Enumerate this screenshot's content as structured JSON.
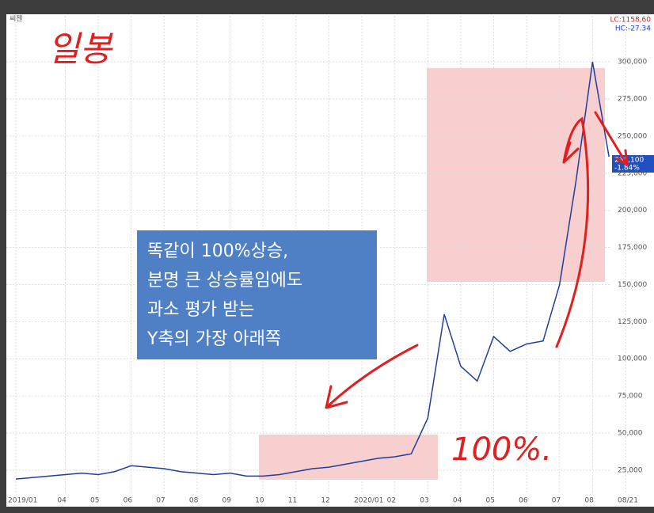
{
  "chart_data": {
    "type": "line",
    "title": "씨젠",
    "legend_info": [
      "LC:1158,60",
      "HC:-27.34"
    ],
    "price_tag": [
      "236,100",
      "-1.84%"
    ],
    "annotations": [
      "일봉",
      "똑같이 100%상승,",
      "분명 큰 상승률임에도",
      "과소 평가 받는",
      "Y축의 가장 아래쪽",
      "100%."
    ],
    "categories": [
      "2019/01",
      null,
      null,
      "04",
      null,
      "05",
      null,
      "06",
      null,
      "07",
      null,
      "08",
      null,
      "09",
      null,
      "10",
      null,
      "11",
      null,
      "12",
      null,
      "2020/01",
      null,
      "02",
      null,
      "03",
      null,
      "04",
      null,
      "05",
      null,
      "06",
      null,
      "07",
      null,
      "08",
      null,
      "08/21"
    ],
    "series": [
      {
        "name": "씨젠",
        "color": "#1f3f9f",
        "values": [
          19000,
          20000,
          21000,
          22000,
          23000,
          22000,
          24000,
          28000,
          27000,
          26000,
          24000,
          23000,
          22000,
          23000,
          21000,
          21000,
          22000,
          24000,
          26000,
          27000,
          29000,
          31000,
          33000,
          34000,
          36000,
          60000,
          130000,
          95000,
          85000,
          115000,
          105000,
          110000,
          112000,
          150000,
          220000,
          300000,
          236100,
          null
        ]
      }
    ],
    "ylim": [
      10000,
      331000
    ],
    "yticks": [
      {
        "value": 25000,
        "label": "25,000"
      },
      {
        "value": 50000,
        "label": "50,000"
      },
      {
        "value": 75000,
        "label": "75,000"
      },
      {
        "value": 100000,
        "label": "100,000"
      },
      {
        "value": 125000,
        "label": "125,000"
      },
      {
        "value": 150000,
        "label": "150,000"
      },
      {
        "value": 175000,
        "label": "175,000"
      },
      {
        "value": 200000,
        "label": "200,000"
      },
      {
        "value": 225000,
        "label": "225,000"
      },
      {
        "value": 250000,
        "label": "250,000"
      },
      {
        "value": 275000,
        "label": "275,000"
      },
      {
        "value": 300000,
        "label": "300,000"
      }
    ],
    "grid": true
  }
}
